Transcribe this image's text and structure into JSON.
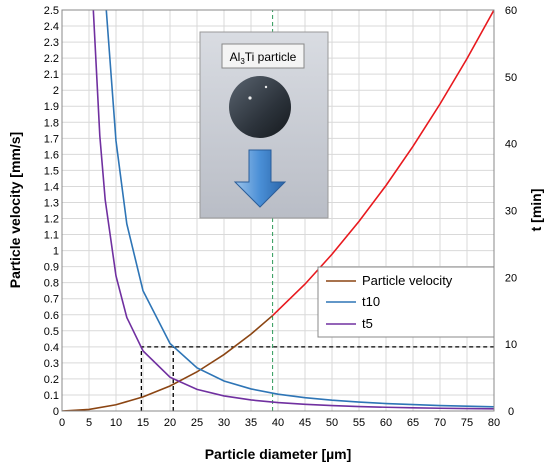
{
  "chart_data": {
    "type": "line",
    "xlabel": "Particle diameter [µm]",
    "ylabel_left": "Particle velocity [mm/s]",
    "ylabel_right": "t [min]",
    "xlim": [
      0,
      80
    ],
    "ylim_left": [
      0,
      2.5
    ],
    "ylim_right": [
      0,
      60
    ],
    "x_ticks": [
      0,
      5,
      10,
      15,
      20,
      25,
      30,
      35,
      40,
      45,
      50,
      55,
      60,
      65,
      70,
      75,
      80
    ],
    "y_left_ticks": [
      0,
      0.1,
      0.2,
      0.3,
      0.4,
      0.5,
      0.6,
      0.7,
      0.8,
      0.9,
      1,
      1.1,
      1.2,
      1.3,
      1.4,
      1.5,
      1.6,
      1.7,
      1.8,
      1.9,
      2,
      2.1,
      2.2,
      2.3,
      2.4,
      2.5
    ],
    "y_right_ticks": [
      0,
      10,
      20,
      30,
      40,
      50,
      60
    ],
    "grid": true,
    "legend_position": "right-middle",
    "series": [
      {
        "name": "Particle velocity",
        "axis": "left",
        "color": "#8B4513",
        "color_high": "#E8191E",
        "x": [
          0,
          5,
          10,
          15,
          20,
          25,
          30,
          35,
          39,
          45,
          50,
          55,
          60,
          65,
          70,
          75,
          80
        ],
        "y": [
          0,
          0.0098,
          0.039,
          0.088,
          0.156,
          0.244,
          0.352,
          0.479,
          0.595,
          0.791,
          0.977,
          1.182,
          1.406,
          1.65,
          1.914,
          2.197,
          2.5
        ]
      },
      {
        "name": "t10",
        "axis": "right",
        "color": "#2E75B6",
        "x": [
          8.2,
          10,
          12,
          15,
          20,
          25,
          30,
          35,
          40,
          45,
          50,
          55,
          60,
          65,
          70,
          75,
          80
        ],
        "y": [
          60,
          40.4,
          28.0,
          18.0,
          10.1,
          6.46,
          4.49,
          3.3,
          2.52,
          1.99,
          1.62,
          1.34,
          1.12,
          0.96,
          0.82,
          0.72,
          0.63
        ]
      },
      {
        "name": "t5",
        "axis": "right",
        "color": "#7030A0",
        "x": [
          5.8,
          7,
          8,
          10,
          12,
          15,
          20,
          25,
          30,
          35,
          40,
          45,
          50,
          55,
          60,
          65,
          70,
          75,
          80
        ],
        "y": [
          60,
          41.2,
          31.6,
          20.2,
          14.0,
          9.0,
          5.05,
          3.23,
          2.25,
          1.65,
          1.26,
          1.0,
          0.81,
          0.67,
          0.56,
          0.48,
          0.41,
          0.36,
          0.32
        ]
      }
    ],
    "reference_lines": [
      {
        "style": "dashed-black",
        "points": [
          [
            14.7,
            0
          ],
          [
            14.7,
            0.4
          ],
          [
            80,
            0.4
          ]
        ]
      },
      {
        "style": "dashed-black",
        "points": [
          [
            20.6,
            0
          ],
          [
            20.6,
            0.4
          ]
        ]
      },
      {
        "style": "dashed-green",
        "points": [
          [
            39,
            0
          ],
          [
            39,
            2.5
          ]
        ]
      }
    ],
    "inset": {
      "label_parts": [
        "Al",
        "3",
        "Ti particle"
      ]
    }
  }
}
